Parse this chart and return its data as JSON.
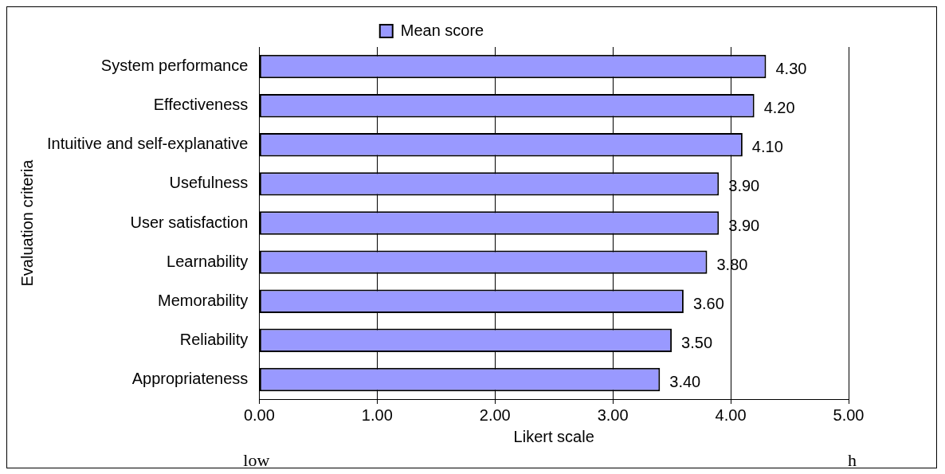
{
  "chart_data": {
    "type": "bar",
    "orientation": "horizontal",
    "xlabel": "Likert scale",
    "ylabel": "Evaluation criteria",
    "categories": [
      "System performance",
      "Effectiveness",
      "Intuitive and self-explanative",
      "Usefulness",
      "User satisfaction",
      "Learnability",
      "Memorability",
      "Reliability",
      "Appropriateness"
    ],
    "series": [
      {
        "name": "Mean score",
        "color": "#9999ff",
        "values": [
          4.3,
          4.2,
          4.1,
          3.9,
          3.9,
          3.8,
          3.6,
          3.5,
          3.4
        ],
        "value_labels": [
          "4.30",
          "4.20",
          "4.10",
          "3.90",
          "3.90",
          "3.80",
          "3.60",
          "3.50",
          "3.40"
        ]
      }
    ],
    "xlim": [
      0,
      5
    ],
    "xticks": [
      {
        "value": 0,
        "label": "0.00"
      },
      {
        "value": 1,
        "label": "1.00"
      },
      {
        "value": 2,
        "label": "2.00"
      },
      {
        "value": 3,
        "label": "3.00"
      },
      {
        "value": 4,
        "label": "4.00"
      },
      {
        "value": 5,
        "label": "5.00"
      }
    ],
    "grid": "x",
    "legend": "top",
    "annotations": [
      "low",
      "h"
    ]
  }
}
